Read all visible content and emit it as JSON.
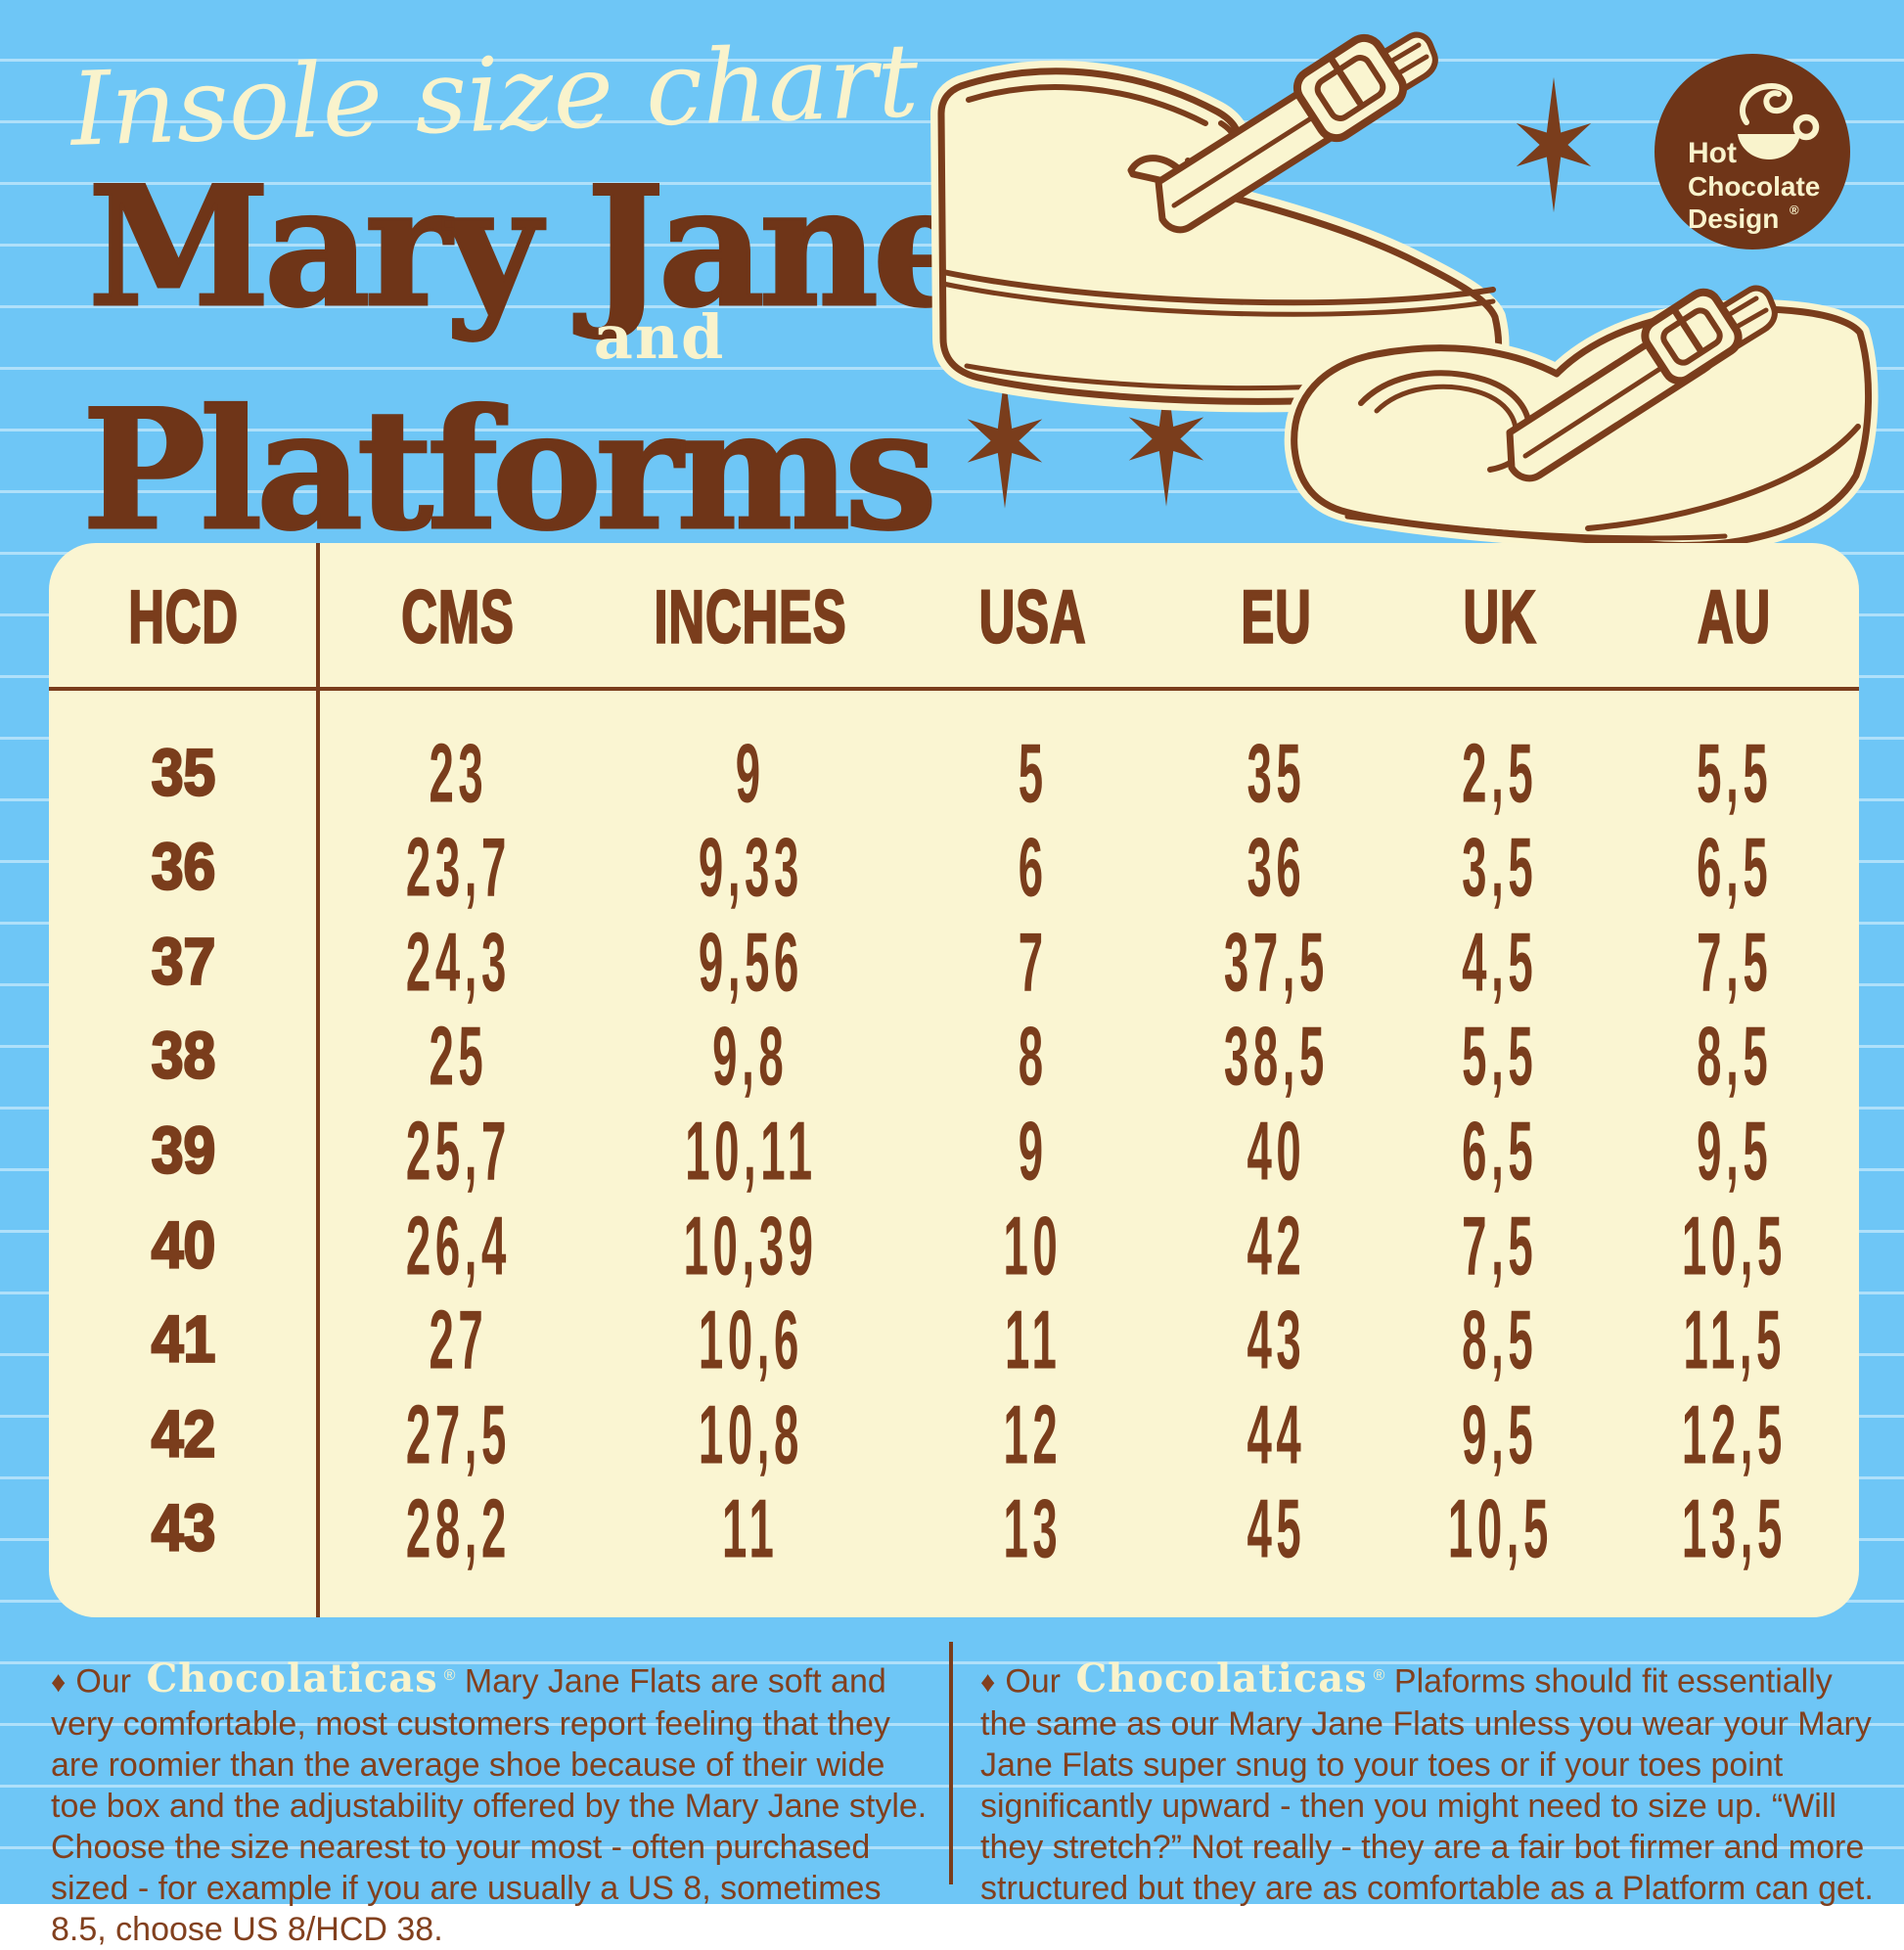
{
  "header": {
    "script_title": "Insole size chart",
    "title_line1": "Mary Jane",
    "title_and": "and",
    "title_line2": "Platforms"
  },
  "logo": {
    "line1": "Hot",
    "line2": "Chocolate",
    "line3": "Design",
    "registered": "®"
  },
  "chart_data": {
    "type": "table",
    "title": "Insole size chart — Mary Jane and Platforms",
    "columns": [
      "HCD",
      "CMS",
      "INCHES",
      "USA",
      "EU",
      "UK",
      "AU"
    ],
    "rows": [
      [
        "35",
        "23",
        "9",
        "5",
        "35",
        "2,5",
        "5,5"
      ],
      [
        "36",
        "23,7",
        "9,33",
        "6",
        "36",
        "3,5",
        "6,5"
      ],
      [
        "37",
        "24,3",
        "9,56",
        "7",
        "37,5",
        "4,5",
        "7,5"
      ],
      [
        "38",
        "25",
        "9,8",
        "8",
        "38,5",
        "5,5",
        "8,5"
      ],
      [
        "39",
        "25,7",
        "10,11",
        "9",
        "40",
        "6,5",
        "9,5"
      ],
      [
        "40",
        "26,4",
        "10,39",
        "10",
        "42",
        "7,5",
        "10,5"
      ],
      [
        "41",
        "27",
        "10,6",
        "11",
        "43",
        "8,5",
        "11,5"
      ],
      [
        "42",
        "27,5",
        "10,8",
        "12",
        "44",
        "9,5",
        "12,5"
      ],
      [
        "43",
        "28,2",
        "11",
        "13",
        "45",
        "10,5",
        "13,5"
      ]
    ]
  },
  "footnotes": {
    "left": {
      "bullet": "♦",
      "prefix": "Our",
      "brand": "Chocolaticas",
      "registered": "®",
      "text": "Mary Jane Flats are soft and very comfortable, most customers report feeling that they are roomier than the average shoe because of their wide toe box and the adjustability offered by the Mary Jane style. Choose the size nearest to your most - often purchased sized - for example if you are usually a US 8, sometimes 8.5, choose US 8/HCD 38."
    },
    "right": {
      "bullet": "♦",
      "prefix": "Our",
      "brand": "Chocolaticas",
      "registered": "®",
      "text": "Plaforms should fit essentially the same as our Mary Jane Flats unless you wear your Mary Jane Flats super snug to your toes or if your toes point significantly upward - then you might need to size up. “Will they stretch?” Not really - they are a fair bot firmer and more structured but they are as comfortable as a Platform can get."
    }
  },
  "colors": {
    "background": "#6EC6F6",
    "rule_line": "#D2EEFC",
    "brown": "#7A3D1C",
    "title_brown": "#6F3518",
    "cream": "#F9F3CC",
    "table_background": "#FAF5D2"
  }
}
